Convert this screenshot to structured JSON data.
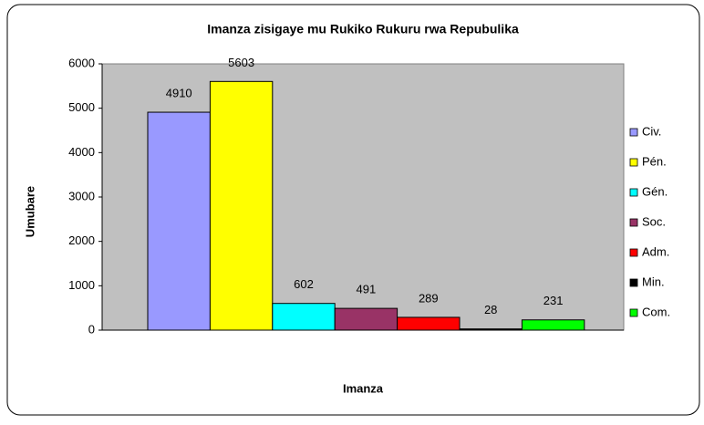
{
  "chart_data": {
    "type": "bar",
    "title": "Imanza zisigaye mu Rukiko Rukuru rwa Repubulika",
    "y_label": "Umubare",
    "x_label": "Imanza",
    "series": [
      {
        "name": "Civ.",
        "color": "#9999ff",
        "values": [
          4910
        ]
      },
      {
        "name": "Pén.",
        "color": "#ffff00",
        "values": [
          5603
        ]
      },
      {
        "name": "Gén.",
        "color": "#00ffff",
        "values": [
          602
        ]
      },
      {
        "name": "Soc.",
        "color": "#993366",
        "values": [
          491
        ]
      },
      {
        "name": "Adm.",
        "color": "#ff0000",
        "values": [
          289
        ]
      },
      {
        "name": "Min.",
        "color": "#000000",
        "values": [
          28
        ]
      },
      {
        "name": "Com.",
        "color": "#00ff00",
        "values": [
          231
        ]
      }
    ],
    "ylim": [
      0,
      6000
    ],
    "yticks": [
      0,
      1000,
      2000,
      3000,
      4000,
      5000,
      6000
    ],
    "grid": false,
    "legend": "right",
    "plot_background": "#c0c0c0"
  }
}
